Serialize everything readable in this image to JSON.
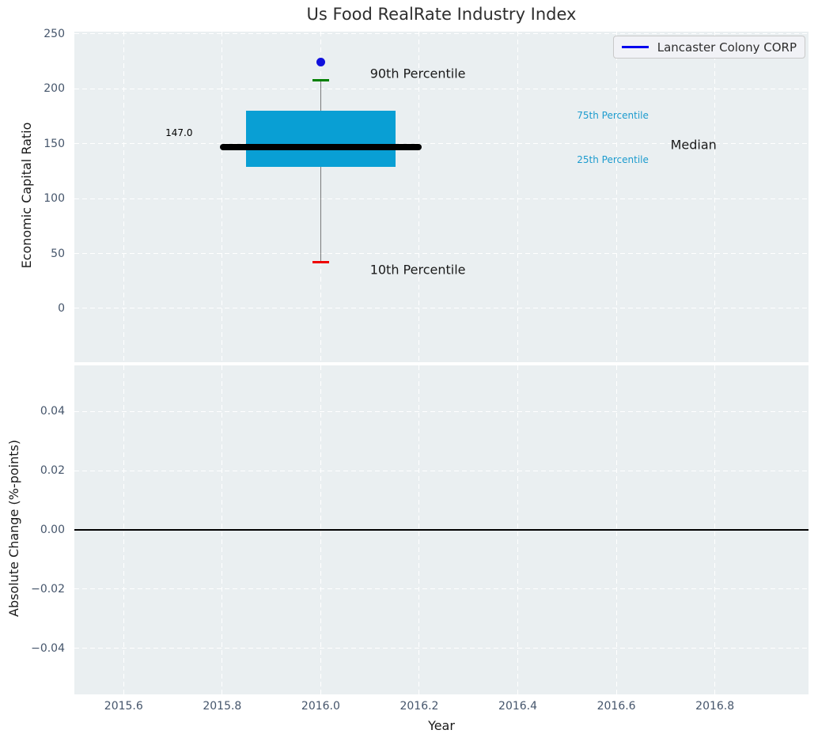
{
  "figure": {
    "title": "Us Food RealRate Industry Index"
  },
  "legend": {
    "label": "Lancaster Colony CORP",
    "line_color": "#0000ee"
  },
  "chart_data": [
    {
      "type": "boxplot",
      "title": "Us Food RealRate Industry Index",
      "ylabel": "Economic Capital Ratio",
      "xlabel": "",
      "xlim": [
        2015.5,
        2016.99
      ],
      "ylim": [
        -49,
        252
      ],
      "grid": true,
      "legend_position": "upper right",
      "yticks": [
        {
          "v": 0,
          "label": "0"
        },
        {
          "v": 50,
          "label": "50"
        },
        {
          "v": 100,
          "label": "100"
        },
        {
          "v": 150,
          "label": "150"
        },
        {
          "v": 200,
          "label": "200"
        },
        {
          "v": 250,
          "label": "250"
        }
      ],
      "xticks": [
        {
          "v": 2015.6
        },
        {
          "v": 2015.8
        },
        {
          "v": 2016.0
        },
        {
          "v": 2016.2
        },
        {
          "v": 2016.4
        },
        {
          "v": 2016.6
        },
        {
          "v": 2016.8
        }
      ],
      "box": {
        "x": 2016.0,
        "p10": 42,
        "p25": 129,
        "median": 147.0,
        "p75": 180,
        "p90": 208,
        "box_halfwidth": 0.152,
        "median_halfwidth": 0.205,
        "cap_halfwidth": 0.017
      },
      "company_point": {
        "name": "Lancaster Colony CORP",
        "x": 2016.0,
        "y": 224
      },
      "colors": {
        "box_fill": "#099fd4",
        "median_line": "#000000",
        "whisker": "#7a7a7a",
        "p90_cap": "#008000",
        "p10_cap": "#ee0000",
        "company_dot": "#1111dd",
        "annotation_blue": "#1c9bce",
        "annotation_black": "#1a1a1a"
      },
      "annotations": [
        {
          "text": "147.0",
          "x": 2015.74,
          "y": 160,
          "anchor": "right",
          "color": "#000000",
          "size": 12
        },
        {
          "text": "90th Percentile",
          "x": 2016.1,
          "y": 214,
          "anchor": "left",
          "color": "#1a1a1a",
          "size": 16
        },
        {
          "text": "75th Percentile",
          "x": 2016.52,
          "y": 176,
          "anchor": "left",
          "color": "#1c9bce",
          "size": 12
        },
        {
          "text": "Median",
          "x": 2016.71,
          "y": 149,
          "anchor": "left",
          "color": "#1a1a1a",
          "size": 16
        },
        {
          "text": "25th Percentile",
          "x": 2016.52,
          "y": 135,
          "anchor": "left",
          "color": "#1c9bce",
          "size": 12
        },
        {
          "text": "10th Percentile",
          "x": 2016.1,
          "y": 35,
          "anchor": "left",
          "color": "#1a1a1a",
          "size": 16
        }
      ]
    },
    {
      "type": "line",
      "title": "",
      "ylabel": "Absolute Change (%-points)",
      "xlabel": "Year",
      "xlim": [
        2015.5,
        2016.99
      ],
      "ylim": [
        -0.0555,
        0.0555
      ],
      "grid": true,
      "yticks": [
        {
          "v": 0.04,
          "label": "0.04"
        },
        {
          "v": 0.02,
          "label": "0.02"
        },
        {
          "v": 0.0,
          "label": "0.00"
        },
        {
          "v": -0.02,
          "label": "−0.02"
        },
        {
          "v": -0.04,
          "label": "−0.04"
        }
      ],
      "xticks": [
        {
          "v": 2015.6,
          "label": "2015.6"
        },
        {
          "v": 2015.8,
          "label": "2015.8"
        },
        {
          "v": 2016.0,
          "label": "2016.0"
        },
        {
          "v": 2016.2,
          "label": "2016.2"
        },
        {
          "v": 2016.4,
          "label": "2016.4"
        },
        {
          "v": 2016.6,
          "label": "2016.6"
        },
        {
          "v": 2016.8,
          "label": "2016.8"
        }
      ],
      "zero_line": {
        "y": 0.0,
        "color": "#000000"
      }
    }
  ],
  "style": {
    "axes_bg": "#eaeff1",
    "grid_color": "#ffffff",
    "tick_label_color": "#45556b"
  }
}
